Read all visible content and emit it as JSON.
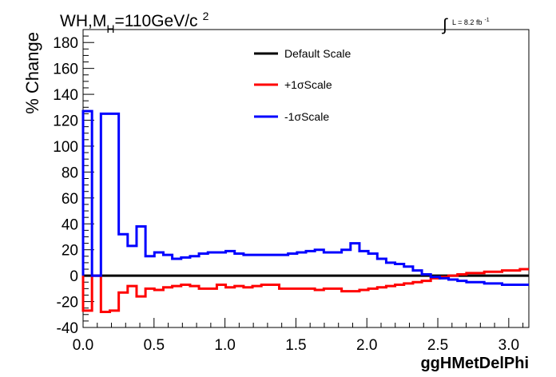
{
  "chart_data": {
    "type": "line",
    "drawstyle": "steps",
    "title": {
      "main": "WH,M",
      "sub": "H",
      "rest": "=110GeV/c",
      "sup": "2"
    },
    "lumi": {
      "symbol": "∫",
      "text": "L = 8.2 fb",
      "sup": "-1"
    },
    "xlabel": "ggHMetDelPhi",
    "ylabel": "% Change",
    "xlim": [
      0,
      3.1416
    ],
    "ylim": [
      -40,
      190
    ],
    "xticks": [
      0.0,
      0.5,
      1.0,
      1.5,
      2.0,
      2.5,
      3.0
    ],
    "xtick_labels": [
      "0.0",
      "0.5",
      "1.0",
      "1.5",
      "2.0",
      "2.5",
      "3.0"
    ],
    "yticks": [
      -40,
      -20,
      0,
      20,
      40,
      60,
      80,
      100,
      120,
      140,
      160,
      180
    ],
    "ytick_labels": [
      "-40",
      "-20",
      "0",
      "20",
      "40",
      "60",
      "80",
      "100",
      "120",
      "140",
      "160",
      "180"
    ],
    "grid": false,
    "legend_placement": "top-center",
    "bin_edges": [
      0,
      0.0628,
      0.1257,
      0.1885,
      0.2513,
      0.3142,
      0.377,
      0.4398,
      0.5027,
      0.5655,
      0.6283,
      0.6912,
      0.754,
      0.8168,
      0.8796,
      0.9425,
      1.0053,
      1.0681,
      1.131,
      1.1938,
      1.2566,
      1.3195,
      1.3823,
      1.4451,
      1.508,
      1.5708,
      1.6336,
      1.6965,
      1.7593,
      1.8221,
      1.885,
      1.9478,
      2.0106,
      2.0735,
      2.1363,
      2.1991,
      2.2619,
      2.3248,
      2.3876,
      2.4504,
      2.5133,
      2.5761,
      2.6389,
      2.7018,
      2.7646,
      2.8274,
      2.8903,
      2.9531,
      3.0159,
      3.0788,
      3.1416
    ],
    "series": [
      {
        "name": "Default Scale",
        "color": "#000000",
        "values": [
          0,
          0,
          0,
          0,
          0,
          0,
          0,
          0,
          0,
          0,
          0,
          0,
          0,
          0,
          0,
          0,
          0,
          0,
          0,
          0,
          0,
          0,
          0,
          0,
          0,
          0,
          0,
          0,
          0,
          0,
          0,
          0,
          0,
          0,
          0,
          0,
          0,
          0,
          0,
          0,
          0,
          0,
          0,
          0,
          0,
          0,
          0,
          0,
          0,
          0
        ]
      },
      {
        "name": "+1σScale",
        "color": "#ff0000",
        "values": [
          -27,
          0,
          -28,
          -27,
          -13,
          -8,
          -16,
          -10,
          -11,
          -9,
          -8,
          -7,
          -8,
          -10,
          -10,
          -7,
          -9,
          -8,
          -9,
          -8,
          -7,
          -7,
          -10,
          -10,
          -10,
          -10,
          -11,
          -10,
          -10,
          -12,
          -12,
          -11,
          -10,
          -9,
          -8,
          -7,
          -6,
          -5,
          -4,
          -2,
          -1,
          0,
          1,
          2,
          2,
          3,
          3,
          4,
          4,
          5
        ]
      },
      {
        "name": "-1σScale",
        "color": "#0000ff",
        "values": [
          127,
          0,
          125,
          125,
          32,
          23,
          38,
          15,
          18,
          16,
          13,
          14,
          15,
          17,
          18,
          18,
          19,
          17,
          16,
          16,
          16,
          16,
          16,
          17,
          18,
          19,
          20,
          18,
          18,
          20,
          25,
          19,
          17,
          13,
          10,
          9,
          7,
          4,
          1,
          -1,
          -2,
          -3,
          -4,
          -5,
          -5,
          -6,
          -6,
          -7,
          -7,
          -7
        ]
      }
    ]
  }
}
